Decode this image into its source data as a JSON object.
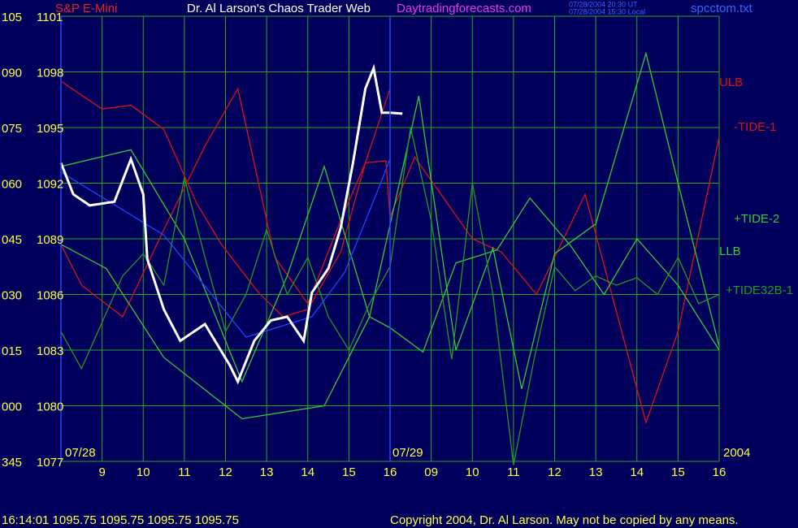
{
  "chart_data": {
    "type": "line",
    "title": "Dr. Al Larson's Chaos Trader Web",
    "instrument": "S&P E-Mini",
    "site": "Daytradingforecasts.com",
    "timestamp_ut": "07/28/2004 20:30 UT",
    "timestamp_local": "07/28/2004 15:30 Local",
    "file": "spcctom.txt",
    "dates": [
      "07/28",
      "07/29",
      "2004"
    ],
    "status": "16:14:01  1095.75 1095.75 1095.75 1095.75",
    "copyright": "Copyright 2004, Dr. Al Larson. May not be copied by any means.",
    "xlim": [
      8,
      24
    ],
    "xticks": [
      9,
      10,
      11,
      12,
      13,
      14,
      15,
      16,
      {
        "value": 17,
        "label": "09"
      },
      {
        "value": 18,
        "label": "10"
      },
      {
        "value": 19,
        "label": "11"
      },
      {
        "value": 20,
        "label": "12"
      },
      {
        "value": 21,
        "label": "13"
      },
      {
        "value": 22,
        "label": "14"
      },
      {
        "value": 23,
        "label": "15"
      },
      {
        "value": 24,
        "label": "16"
      }
    ],
    "ylim": [
      1077,
      1101
    ],
    "yticks": [
      1101,
      1098,
      1095,
      1092,
      1089,
      1086,
      1083,
      1080,
      1077
    ],
    "angle_labels": [
      "105",
      "090",
      "075",
      "060",
      "045",
      "030",
      "015",
      "000",
      "345"
    ],
    "grid": true,
    "series": [
      {
        "name": "ULB",
        "color": "#dd1111",
        "x": [
          8,
          9,
          9.7,
          10.5,
          11.3,
          11.9,
          12.8,
          13.4,
          14,
          14.8,
          15.4,
          16
        ],
        "values": [
          1097.5,
          1096,
          1096.2,
          1094.9,
          1090.9,
          1088.7,
          1086.1,
          1084.8,
          1085.2,
          1088.3,
          1093.1,
          1097.1
        ]
      },
      {
        "name": "-TIDE-1",
        "color": "#dd1111",
        "x": [
          8,
          8.5,
          9.5,
          10.5,
          11.5,
          12.3,
          13.2,
          14,
          14.8,
          15.4,
          15.9,
          16,
          16.6,
          18,
          18.7,
          19.56,
          20.74,
          22.22,
          23,
          24
        ],
        "values": [
          1088.7,
          1086.5,
          1084.8,
          1089.5,
          1094,
          1097.1,
          1088,
          1085.5,
          1090,
          1093.1,
          1093.2,
          1090.2,
          1093.4,
          1089,
          1088.3,
          1086,
          1091.4,
          1079.1,
          1084,
          1094.5
        ]
      },
      {
        "name": "+TIDE-2",
        "color": "#33cc33",
        "x": [
          8,
          9.7,
          11,
          12.4,
          13.5,
          14.4,
          15.5,
          16.7,
          17.6,
          18.5,
          19.2,
          20,
          21,
          22.22,
          23,
          24
        ],
        "values": [
          1092.9,
          1093.8,
          1089,
          1081.3,
          1087,
          1092.9,
          1084.8,
          1096.7,
          1083,
          1088.5,
          1080.9,
          1088.2,
          1089.8,
          1099,
          1092,
          1083.2
        ]
      },
      {
        "name": "LLB",
        "color": "#33cc33",
        "x": [
          8,
          9.1,
          10.5,
          12.4,
          14.4,
          15.5,
          16,
          16.8,
          17.6,
          18.6,
          19.4,
          20.4,
          21.2,
          22,
          23,
          24
        ],
        "values": [
          1088.7,
          1087.4,
          1082.6,
          1079.3,
          1080,
          1084.8,
          1084.2,
          1082.9,
          1087.7,
          1088.4,
          1091.2,
          1088.6,
          1086,
          1089,
          1086.5,
          1083
        ]
      },
      {
        "name": "+TIDE32B-1",
        "color": "#229922",
        "x": [
          8,
          8.5,
          9,
          9.5,
          10,
          10.5,
          11,
          11.5,
          12,
          12.5,
          13,
          13.5,
          14,
          14.5,
          15,
          15.5,
          16,
          16.5,
          17,
          17.5,
          18,
          18.5,
          19,
          19.5,
          20,
          20.5,
          21,
          21.5,
          22,
          22.5,
          23,
          23.5,
          24
        ],
        "values": [
          1084,
          1082,
          1084.5,
          1087,
          1088.2,
          1086.5,
          1092.3,
          1088,
          1084,
          1086,
          1089.5,
          1086,
          1088,
          1084.8,
          1083,
          1085.5,
          1087.5,
          1095,
          1090,
          1082.5,
          1092,
          1086,
          1076.8,
          1082.5,
          1087.5,
          1086.2,
          1087,
          1086.5,
          1086.9,
          1086,
          1088,
          1085.5,
          1086
        ]
      },
      {
        "color": "#2244ff",
        "x": [
          8,
          10.5,
          12.5,
          14.1,
          14.9,
          15.7,
          16
        ],
        "values": [
          1092.6,
          1089.2,
          1083.7,
          1084.8,
          1087.2,
          1091.6,
          1093.3
        ]
      },
      {
        "color": "#ffffff",
        "x": [
          8,
          8.3,
          8.7,
          9.3,
          9.7,
          10,
          10.1,
          10.5,
          10.9,
          11.5,
          12.1,
          12.3,
          12.7,
          13.1,
          13.5,
          13.9,
          14.1,
          14.5,
          14.8,
          15.1,
          15.4,
          15.6,
          15.8,
          16,
          16.3
        ],
        "values": [
          1093.1,
          1091.4,
          1090.8,
          1091,
          1093.3,
          1091.4,
          1087.9,
          1085.2,
          1083.5,
          1084.4,
          1082.2,
          1081.3,
          1083.5,
          1084.6,
          1084.8,
          1083.5,
          1086.1,
          1087.4,
          1089.6,
          1093.1,
          1097.1,
          1098.2,
          1095.8,
          1095.8,
          1095.75
        ]
      }
    ]
  }
}
